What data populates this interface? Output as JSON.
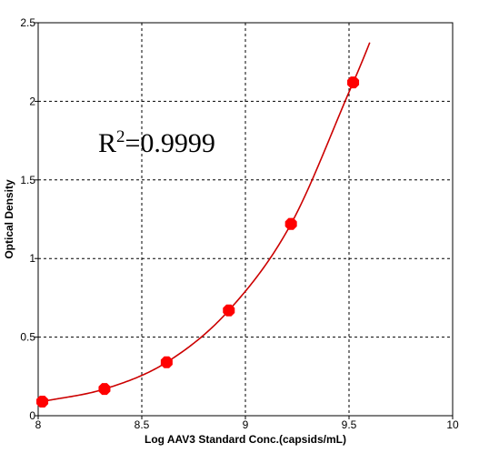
{
  "chart_data": {
    "type": "scatter",
    "title": "",
    "xlabel": "Log AAV3 Standard Conc.(capsids/mL)",
    "ylabel": "Optical Density",
    "xlim": [
      8,
      10
    ],
    "ylim": [
      0,
      2.5
    ],
    "x_ticks": [
      8,
      8.5,
      9,
      9.5,
      10
    ],
    "x_tick_labels": [
      "8",
      "8.5",
      "9",
      "9.5",
      "10"
    ],
    "y_ticks": [
      0,
      0.5,
      1,
      1.5,
      2,
      2.5
    ],
    "y_tick_labels": [
      "0",
      "0.5",
      "1",
      "1.5",
      "2",
      "2.5"
    ],
    "grid": true,
    "series": [
      {
        "x": [
          8.02,
          8.32,
          8.62,
          8.92,
          9.22,
          9.52
        ],
        "y": [
          0.09,
          0.17,
          0.34,
          0.67,
          1.22,
          2.12
        ],
        "color": "#ff0000",
        "marker": "octagon"
      }
    ],
    "fit_curve": {
      "color": "#cc0000",
      "x_range": [
        8.0,
        9.6
      ]
    },
    "annotation": {
      "base": "R",
      "superscript": "2",
      "rest": "=0.9999"
    }
  }
}
